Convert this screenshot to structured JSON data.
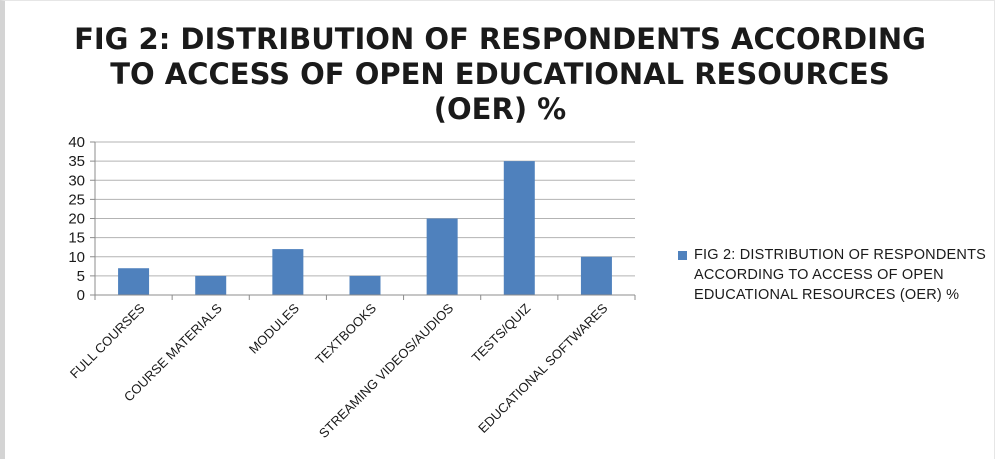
{
  "colors": {
    "bar": "#4f81bd",
    "grid": "#b3b3b3",
    "axis": "#8c8c8c"
  },
  "chart_data": {
    "type": "bar",
    "title": "FIG 2: DISTRIBUTION OF RESPONDENTS ACCORDING TO ACCESS OF OPEN EDUCATIONAL RESOURCES (OER) %",
    "categories": [
      "FULL COURSES",
      "COURSE MATERIALS",
      "MODULES",
      "TEXTBOOKS",
      "STREAMING VIDEOS/AUDIOS",
      "TESTS/QUIZ",
      "EDUCATIONAL SOFTWARES"
    ],
    "series": [
      {
        "name": "FIG 2: DISTRIBUTION OF RESPONDENTS ACCORDING TO ACCESS OF OPEN EDUCATIONAL RESOURCES (OER) %",
        "values": [
          7,
          5,
          12,
          5,
          20,
          35,
          10
        ]
      }
    ],
    "yticks": [
      "0",
      "5",
      "10",
      "15",
      "20",
      "25",
      "30",
      "35",
      "40"
    ],
    "ylim": [
      0,
      40
    ],
    "xlabel": "",
    "ylabel": "",
    "grid": true,
    "legend_position": "right"
  }
}
